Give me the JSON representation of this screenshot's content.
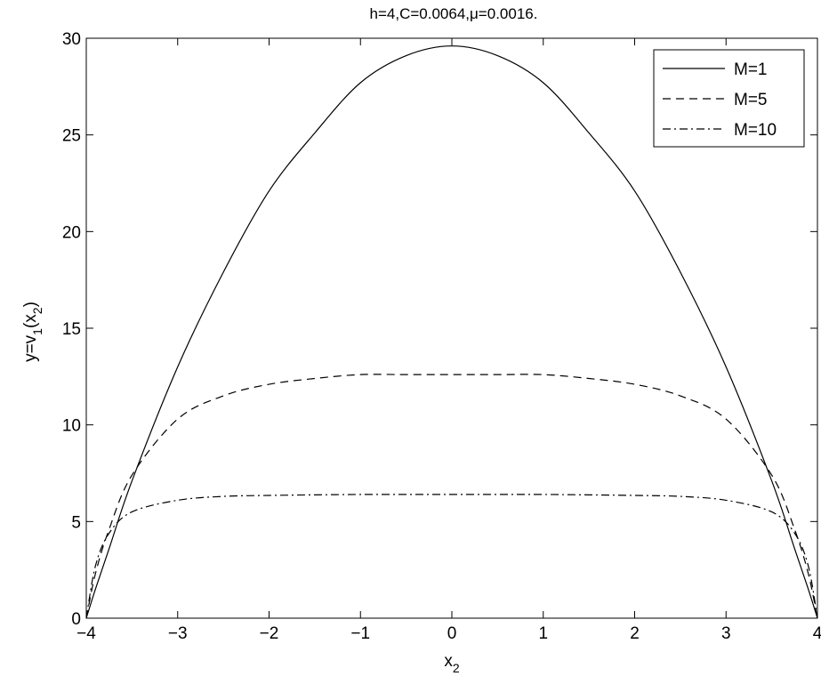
{
  "chart_data": {
    "type": "line",
    "title": "h=4,C=0.0064,μ=0.0016.",
    "xlabel": "x",
    "xlabel_sub": "2",
    "ylabel_parts": {
      "a": "y=v",
      "sub": "1",
      "b": "(x",
      "sub2": "2",
      "c": ")"
    },
    "xlim": [
      -4,
      4
    ],
    "ylim": [
      0,
      30
    ],
    "xticks": [
      -4,
      -3,
      -2,
      -1,
      0,
      1,
      2,
      3,
      4
    ],
    "xtick_labels": [
      "−4",
      "−3",
      "−2",
      "−1",
      "0",
      "1",
      "2",
      "3",
      "4"
    ],
    "yticks": [
      0,
      5,
      10,
      15,
      20,
      25,
      30
    ],
    "ytick_labels": [
      "0",
      "5",
      "10",
      "15",
      "20",
      "25",
      "30"
    ],
    "grid": false,
    "legend_position": "top-right",
    "x": [
      -4,
      -3.9,
      -3.75,
      -3.5,
      -3,
      -2.5,
      -2,
      -1.5,
      -1,
      -0.5,
      0,
      0.5,
      1,
      1.5,
      2,
      2.5,
      3,
      3.5,
      3.75,
      3.9,
      4
    ],
    "series": [
      {
        "name": "M=1",
        "style": "solid",
        "values": [
          0,
          1.5,
          3.6,
          7.1,
          13.0,
          17.9,
          22.1,
          25.1,
          27.7,
          29.1,
          29.6,
          29.1,
          27.7,
          25.1,
          22.1,
          17.9,
          13.0,
          7.1,
          3.6,
          1.5,
          0
        ]
      },
      {
        "name": "M=5",
        "style": "dashed",
        "values": [
          0,
          2.3,
          4.6,
          7.4,
          10.3,
          11.5,
          12.1,
          12.4,
          12.6,
          12.6,
          12.6,
          12.6,
          12.6,
          12.4,
          12.1,
          11.5,
          10.3,
          7.4,
          4.6,
          2.3,
          0
        ]
      },
      {
        "name": "M=10",
        "style": "dashdot",
        "values": [
          0,
          2.7,
          4.4,
          5.5,
          6.1,
          6.3,
          6.35,
          6.38,
          6.4,
          6.4,
          6.4,
          6.4,
          6.4,
          6.38,
          6.35,
          6.3,
          6.1,
          5.5,
          4.4,
          2.7,
          0
        ]
      }
    ]
  }
}
